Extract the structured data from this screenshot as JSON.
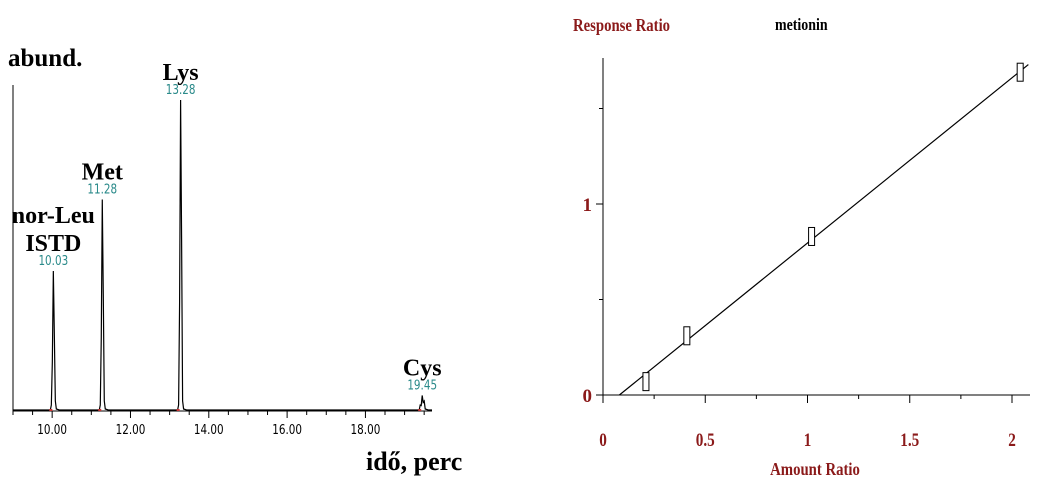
{
  "chart_data": [
    {
      "type": "line",
      "ylabel": "abund.",
      "xlabel": "idő, perc",
      "xlim": [
        9.0,
        19.7
      ],
      "x_ticks": [
        "10.00",
        "12.00",
        "14.00",
        "16.00",
        "18.00"
      ],
      "peaks": [
        {
          "compound": "nor-Leu",
          "compound2": "ISTD",
          "rt": 10.03,
          "rt_label": "10.03",
          "rel_height": 0.45
        },
        {
          "compound": "Met",
          "rt": 11.28,
          "rt_label": "11.28",
          "rel_height": 0.68
        },
        {
          "compound": "Lys",
          "rt": 13.28,
          "rt_label": "13.28",
          "rel_height": 1.0
        },
        {
          "compound": "Cys",
          "rt": 19.45,
          "rt_label": "19.45",
          "rel_height": 0.05
        }
      ],
      "colors": {
        "trace": "#000000",
        "rt_label": "#2a8a8a",
        "baseline_marks": "#cc3333"
      }
    },
    {
      "type": "scatter",
      "title": "metionin",
      "ylabel": "Response Ratio",
      "xlabel": "Amount Ratio",
      "xlim": [
        0,
        2.08
      ],
      "ylim": [
        0,
        1.75
      ],
      "x_ticks": [
        "0",
        "0.5",
        "1",
        "1.5",
        "2"
      ],
      "y_ticks": [
        "0",
        "1"
      ],
      "points": [
        {
          "x": 0.21,
          "y": 0.07
        },
        {
          "x": 0.41,
          "y": 0.31
        },
        {
          "x": 1.02,
          "y": 0.83
        },
        {
          "x": 2.04,
          "y": 1.69
        }
      ],
      "fit_line": {
        "x0": 0.08,
        "y0": 0.0,
        "x1": 2.08,
        "y1": 1.73
      },
      "colors": {
        "axis_label": "#8b1a1a",
        "tick_label": "#8b1a1a",
        "title": "#000000",
        "fit": "#000000"
      }
    }
  ]
}
